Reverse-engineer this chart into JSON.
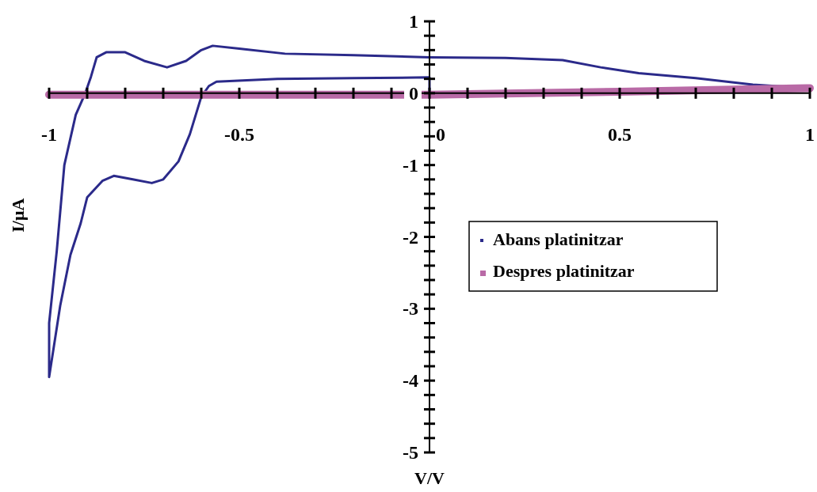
{
  "chart_data": {
    "type": "line",
    "xlabel": "V/V",
    "ylabel": "I/μA",
    "xlim": [
      -1,
      1
    ],
    "ylim": [
      -5,
      1
    ],
    "xticks": [
      -1,
      {
        "value": -0.9,
        "label": null
      },
      {
        "value": -0.8,
        "label": null
      },
      {
        "value": -0.7,
        "label": null
      },
      {
        "value": -0.6,
        "label": null
      },
      -0.5,
      {
        "value": -0.4,
        "label": null
      },
      {
        "value": -0.3,
        "label": null
      },
      {
        "value": -0.2,
        "label": null
      },
      {
        "value": -0.1,
        "label": null
      },
      0,
      {
        "value": 0.1,
        "label": null
      },
      {
        "value": 0.2,
        "label": null
      },
      {
        "value": 0.3,
        "label": null
      },
      {
        "value": 0.4,
        "label": null
      },
      0.5,
      {
        "value": 0.6,
        "label": null
      },
      {
        "value": 0.7,
        "label": null
      },
      {
        "value": 0.8,
        "label": null
      },
      {
        "value": 0.9,
        "label": null
      },
      1
    ],
    "yticks": [
      -5,
      {
        "value": -4.8,
        "label": null
      },
      {
        "value": -4.6,
        "label": null
      },
      {
        "value": -4.4,
        "label": null
      },
      {
        "value": -4.2,
        "label": null
      },
      -4,
      {
        "value": -3.8,
        "label": null
      },
      {
        "value": -3.6,
        "label": null
      },
      {
        "value": -3.4,
        "label": null
      },
      {
        "value": -3.2,
        "label": null
      },
      -3,
      {
        "value": -2.8,
        "label": null
      },
      {
        "value": -2.6,
        "label": null
      },
      {
        "value": -2.4,
        "label": null
      },
      {
        "value": -2.2,
        "label": null
      },
      -2,
      {
        "value": -1.8,
        "label": null
      },
      {
        "value": -1.6,
        "label": null
      },
      {
        "value": -1.4,
        "label": null
      },
      {
        "value": -1.2,
        "label": null
      },
      -1,
      {
        "value": -0.8,
        "label": null
      },
      {
        "value": -0.6,
        "label": null
      },
      {
        "value": -0.4,
        "label": null
      },
      {
        "value": -0.2,
        "label": null
      },
      0,
      {
        "value": 0.2,
        "label": null
      },
      {
        "value": 0.4,
        "label": null
      },
      {
        "value": 0.6,
        "label": null
      },
      {
        "value": 0.8,
        "label": null
      },
      1
    ],
    "grid": false,
    "legend": "right",
    "line_style": "solid",
    "series": [
      {
        "name": "Abans platinitzar",
        "color": "#2b2a8a",
        "x": [
          0.03,
          0,
          0,
          -0.2,
          -0.4,
          -0.56,
          -0.58,
          -0.6,
          -0.63,
          -0.66,
          -0.7,
          -0.73,
          -0.78,
          -0.83,
          -0.86,
          -0.9,
          -0.917,
          -0.944,
          -0.971,
          -1,
          -1,
          -0.98,
          -0.96,
          -0.93,
          -0.905,
          -0.89,
          -0.875,
          -0.85,
          -0.8,
          -0.75,
          -0.69,
          -0.64,
          -0.6,
          -0.57,
          -0.5,
          -0.38,
          -0.2,
          0,
          0.2,
          0.35,
          0.45,
          0.55,
          0.7,
          0.85,
          1
        ],
        "values": [
          0,
          0,
          0.22,
          0.21,
          0.2,
          0.16,
          0.1,
          -0.05,
          -0.57,
          -0.95,
          -1.2,
          -1.25,
          -1.2,
          -1.15,
          -1.22,
          -1.45,
          -1.81,
          -2.25,
          -2.96,
          -3.95,
          -3.2,
          -2.2,
          -1,
          -0.3,
          0,
          0.23,
          0.5,
          0.57,
          0.57,
          0.45,
          0.36,
          0.45,
          0.6,
          0.66,
          0.62,
          0.55,
          0.53,
          0.5,
          0.49,
          0.46,
          0.36,
          0.28,
          0.21,
          0.12,
          0.07
        ]
      },
      {
        "name": "Despres platinitzar",
        "color": "#b96aa6",
        "x": [
          -1,
          -0.5,
          0,
          0.5,
          1
        ],
        "values": [
          -0.02,
          -0.02,
          -0.02,
          0.02,
          0.07
        ]
      }
    ]
  }
}
